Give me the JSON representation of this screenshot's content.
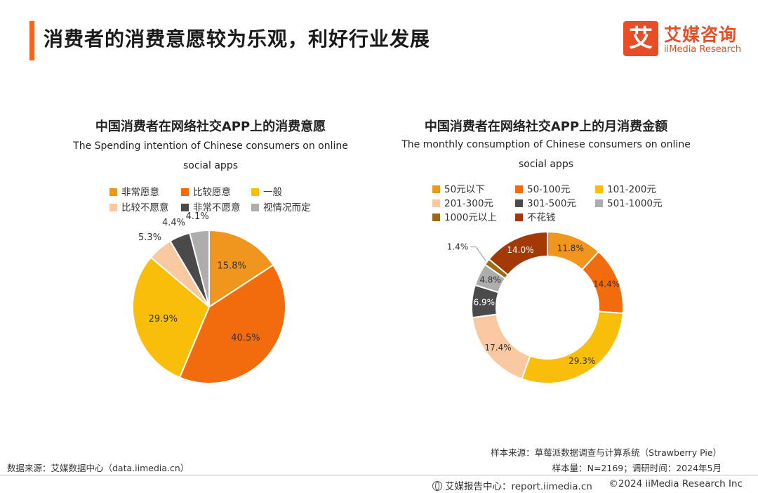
{
  "header": {
    "title": "消费者的消费意愿较为乐观，利好行业发展",
    "logo_mark": "艾",
    "logo_cn": "艾媒咨询",
    "logo_en": "iiMedia Research",
    "accent_color": "#f26522"
  },
  "chart_data": [
    {
      "type": "pie",
      "title": "中国消费者在网络社交APP上的消费意愿",
      "subtitle_line1": "The Spending intention of Chinese consumers on online",
      "subtitle_line2": "social apps",
      "series": [
        {
          "name": "非常愿意",
          "value": 15.8,
          "label": "15.8%",
          "color": "#f0961e"
        },
        {
          "name": "比较愿意",
          "value": 40.5,
          "label": "40.5%",
          "color": "#f26c0d"
        },
        {
          "name": "一般",
          "value": 29.9,
          "label": "29.9%",
          "color": "#f8be0a"
        },
        {
          "name": "比较不愿意",
          "value": 5.3,
          "label": "5.3%",
          "color": "#f8c9a0"
        },
        {
          "name": "非常不愿意",
          "value": 4.4,
          "label": "4.4%",
          "color": "#4a4a4a"
        },
        {
          "name": "视情况而定",
          "value": 4.1,
          "label": "4.1%",
          "color": "#adadad"
        }
      ]
    },
    {
      "type": "pie",
      "donut": true,
      "title": "中国消费者在网络社交APP上的月消费金额",
      "subtitle_line1": "The monthly consumption of Chinese consumers on online",
      "subtitle_line2": "social apps",
      "series": [
        {
          "name": "50元以下",
          "value": 11.8,
          "label": "11.8%",
          "color": "#f0961e"
        },
        {
          "name": "50-100元",
          "value": 14.4,
          "label": "14.4%",
          "color": "#f26c0d"
        },
        {
          "name": "101-200元",
          "value": 29.3,
          "label": "29.3%",
          "color": "#f8be0a"
        },
        {
          "name": "201-300元",
          "value": 17.4,
          "label": "17.4%",
          "color": "#f8c9a0"
        },
        {
          "name": "301-500元",
          "value": 6.9,
          "label": "6.9%",
          "color": "#4a4a4a"
        },
        {
          "name": "501-1000元",
          "value": 4.8,
          "label": "4.8%",
          "color": "#adadad"
        },
        {
          "name": "1000元以上",
          "value": 1.4,
          "label": "1.4%",
          "color": "#9c6a10"
        },
        {
          "name": "不花钱",
          "value": 14.0,
          "label": "14.0%",
          "color": "#a33a06"
        }
      ]
    }
  ],
  "footer": {
    "data_source": "数据来源：艾媒数据中心（data.iimedia.cn）",
    "sample_source": "样本来源：草莓派数据调查与计算系统（Strawberry Pie）",
    "sample_info": "样本量：N=2169；调研时间：2024年5月",
    "report_center": "艾媒报告中心：report.iimedia.cn",
    "copyright": "©2024  iiMedia Research Inc"
  }
}
